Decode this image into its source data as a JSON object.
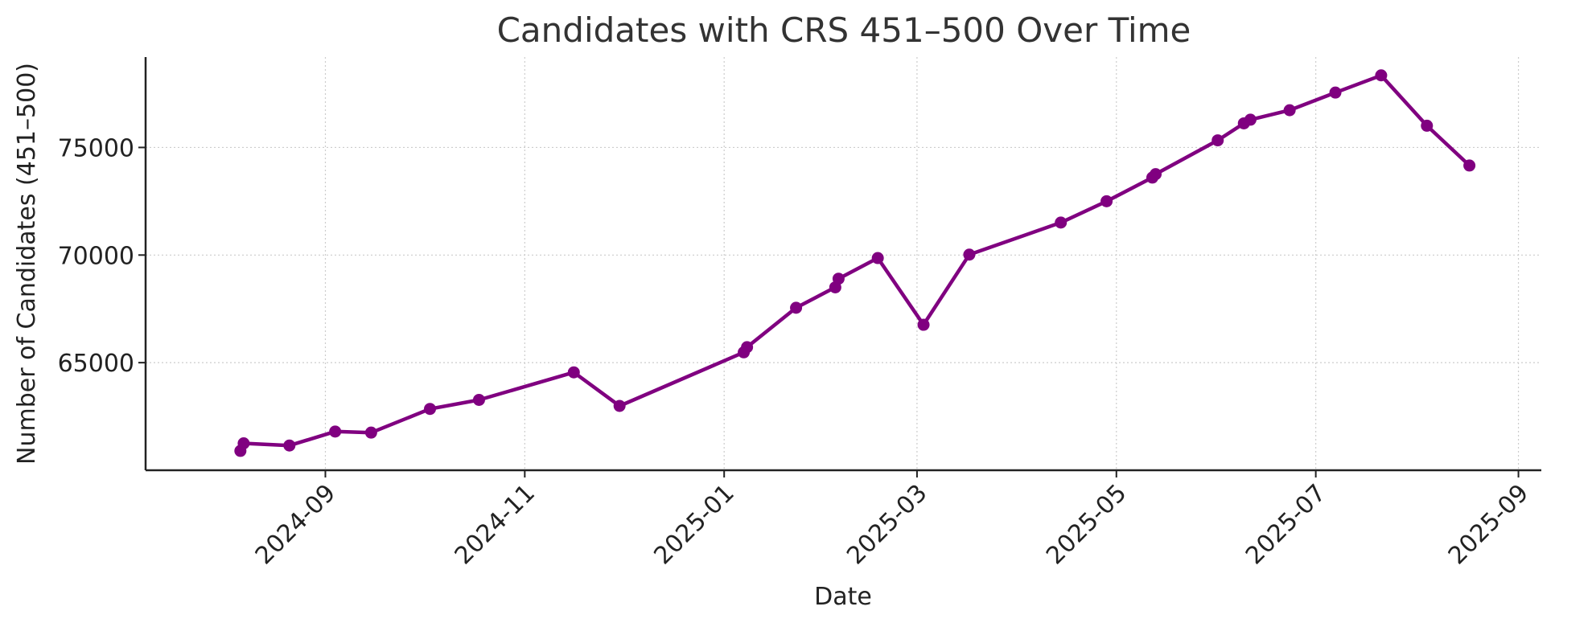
{
  "chart_data": {
    "type": "line",
    "title": "Candidates with CRS 451–500 Over Time",
    "xlabel": "Date",
    "ylabel": "Number of Candidates (451–500)",
    "x_scale": "date",
    "xlim": [
      "2024-07-08",
      "2025-09-08"
    ],
    "ylim": [
      60000,
      79200
    ],
    "x_ticks": [
      "2024-09",
      "2024-11",
      "2025-01",
      "2025-03",
      "2025-05",
      "2025-07",
      "2025-09"
    ],
    "y_ticks": [
      65000,
      70000,
      75000
    ],
    "grid": true,
    "color": "#800080",
    "series": [
      {
        "x": [
          "2024-08-06",
          "2024-08-07",
          "2024-08-21",
          "2024-09-04",
          "2024-09-15",
          "2024-10-03",
          "2024-10-18",
          "2024-11-16",
          "2024-11-30",
          "2025-01-07",
          "2025-01-08",
          "2025-01-23",
          "2025-02-04",
          "2025-02-05",
          "2025-02-17",
          "2025-03-03",
          "2025-03-17",
          "2025-04-14",
          "2025-04-28",
          "2025-05-12",
          "2025-05-13",
          "2025-06-01",
          "2025-06-09",
          "2025-06-11",
          "2025-06-23",
          "2025-07-07",
          "2025-07-21",
          "2025-08-04",
          "2025-08-17"
        ],
        "y": [
          60900,
          61250,
          61150,
          61800,
          61750,
          62850,
          63270,
          64550,
          62990,
          65480,
          65720,
          67550,
          68500,
          68900,
          69860,
          66760,
          70020,
          71510,
          72500,
          73600,
          73760,
          75330,
          76120,
          76290,
          76730,
          77550,
          78350,
          76010,
          74160
        ]
      }
    ]
  }
}
